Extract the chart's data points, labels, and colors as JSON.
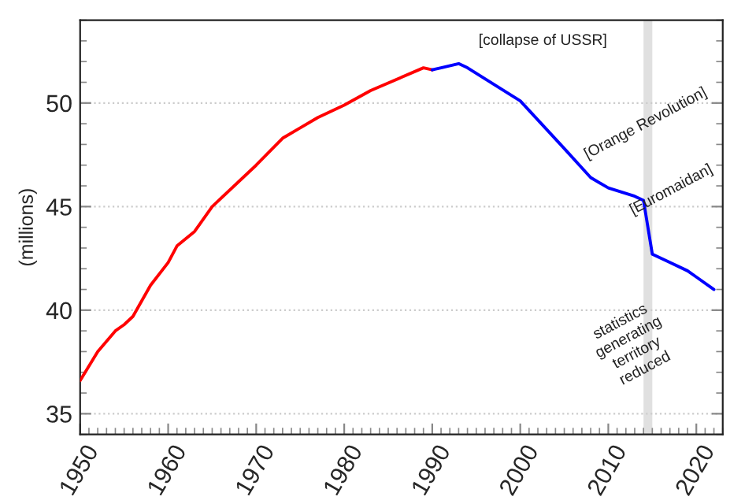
{
  "chart_data": {
    "type": "line",
    "ylabel": "(millions)",
    "series": [
      {
        "color": "#ff0000",
        "x": [
          1950,
          1952,
          1954,
          1955,
          1956,
          1958,
          1960,
          1961,
          1963,
          1965,
          1970,
          1973,
          1975,
          1977,
          1980,
          1983,
          1989,
          1990
        ],
        "values": [
          36.6,
          38.0,
          39.0,
          39.3,
          39.7,
          41.2,
          42.3,
          43.1,
          43.8,
          45.0,
          47.0,
          48.3,
          48.8,
          49.3,
          49.9,
          50.6,
          51.7,
          51.6
        ]
      },
      {
        "color": "#0000ff",
        "x": [
          1990,
          1991,
          1993,
          1994,
          2000,
          2005,
          2008,
          2010,
          2013,
          2014,
          2015,
          2017,
          2019,
          2020,
          2022
        ],
        "values": [
          51.6,
          51.7,
          51.9,
          51.7,
          50.1,
          47.8,
          46.4,
          45.9,
          45.5,
          45.3,
          42.7,
          42.3,
          41.9,
          41.6,
          41.0
        ]
      }
    ],
    "xlim": [
      1950,
      2023
    ],
    "xticks": [
      1950,
      1960,
      1970,
      1980,
      1990,
      2000,
      2010,
      2020
    ],
    "ylim": [
      34,
      54
    ],
    "yticks": [
      35,
      40,
      45,
      50
    ],
    "bands": [
      {
        "axis": "x",
        "from": 2014,
        "to": 2015,
        "color": "#e0e0e0"
      }
    ],
    "annotations": [
      "[collapse of USSR]",
      "[Orange Revolution]",
      "[Euromaidan]",
      "statistics\ngenerating\nterritory\nreduced"
    ],
    "grid": "y",
    "line_style": "solid"
  }
}
